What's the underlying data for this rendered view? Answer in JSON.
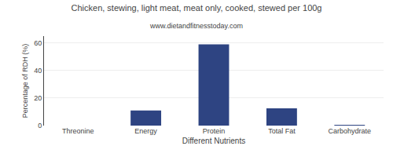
{
  "chart_data": {
    "type": "bar",
    "title": "Chicken, stewing, light meat, meat only, cooked, stewed per 100g",
    "subtitle": "www.dietandfitnesstoday.com",
    "xlabel": "Different Nutrients",
    "ylabel": "Percentage of RDH (%)",
    "categories": [
      "Threonine",
      "Energy",
      "Protein",
      "Total Fat",
      "Carbohydrate"
    ],
    "values": [
      0,
      11,
      59,
      12.5,
      0.5
    ],
    "color": "#2e4482",
    "ylim": [
      0,
      65
    ],
    "yticks": [
      0,
      20,
      40,
      60
    ],
    "grid": true
  }
}
